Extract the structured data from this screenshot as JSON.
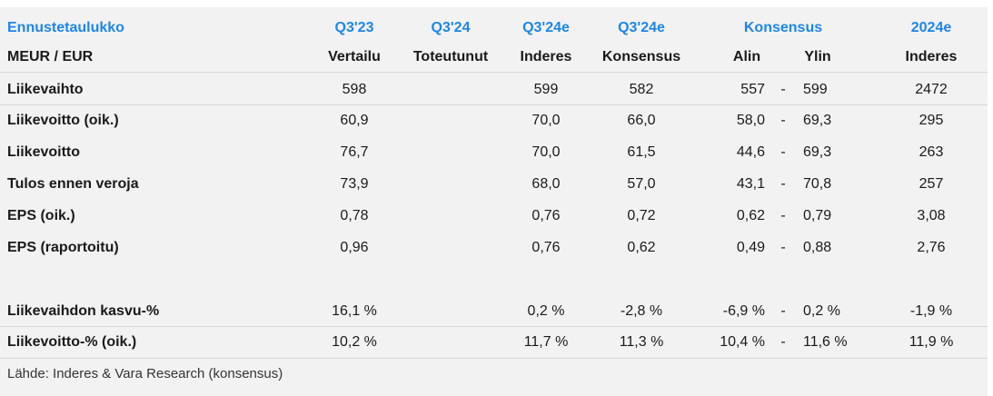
{
  "header": {
    "title": "Ennustetaulukko",
    "unit": "MEUR / EUR",
    "col_periods": [
      "Q3'23",
      "Q3'24",
      "Q3'24e",
      "Q3'24e",
      "Konsensus",
      "2024e"
    ],
    "col_subs": [
      "Vertailu",
      "Toteutunut",
      "Inderes",
      "Konsensus",
      "Alin",
      "Ylin",
      "Inderes"
    ]
  },
  "rows": [
    {
      "label": "Liikevaihto",
      "vertailu": "598",
      "toteutunut": "",
      "inderes": "599",
      "konsensus": "582",
      "alin": "557",
      "dash": "-",
      "ylin": "599",
      "y2024": "2472"
    },
    {
      "label": "Liikevoitto (oik.)",
      "vertailu": "60,9",
      "toteutunut": "",
      "inderes": "70,0",
      "konsensus": "66,0",
      "alin": "58,0",
      "dash": "-",
      "ylin": "69,3",
      "y2024": "295"
    },
    {
      "label": "Liikevoitto",
      "vertailu": "76,7",
      "toteutunut": "",
      "inderes": "70,0",
      "konsensus": "61,5",
      "alin": "44,6",
      "dash": "-",
      "ylin": "69,3",
      "y2024": "263"
    },
    {
      "label": "Tulos ennen veroja",
      "vertailu": "73,9",
      "toteutunut": "",
      "inderes": "68,0",
      "konsensus": "57,0",
      "alin": "43,1",
      "dash": "-",
      "ylin": "70,8",
      "y2024": "257"
    },
    {
      "label": "EPS (oik.)",
      "vertailu": "0,78",
      "toteutunut": "",
      "inderes": "0,76",
      "konsensus": "0,72",
      "alin": "0,62",
      "dash": "-",
      "ylin": "0,79",
      "y2024": "3,08"
    },
    {
      "label": "EPS (raportoitu)",
      "vertailu": "0,96",
      "toteutunut": "",
      "inderes": "0,76",
      "konsensus": "0,62",
      "alin": "0,49",
      "dash": "-",
      "ylin": "0,88",
      "y2024": "2,76"
    },
    {
      "label": "Liikevaihdon kasvu-%",
      "vertailu": "16,1 %",
      "toteutunut": "",
      "inderes": "0,2 %",
      "konsensus": "-2,8 %",
      "alin": "-6,9 %",
      "dash": "-",
      "ylin": "0,2 %",
      "y2024": "-1,9 %"
    },
    {
      "label": "Liikevoitto-% (oik.)",
      "vertailu": "10,2 %",
      "toteutunut": "",
      "inderes": "11,7 %",
      "konsensus": "11,3 %",
      "alin": "10,4 %",
      "dash": "-",
      "ylin": "11,6 %",
      "y2024": "11,9 %"
    }
  ],
  "source": "Lähde: Inderes & Vara Research  (konsensus)"
}
